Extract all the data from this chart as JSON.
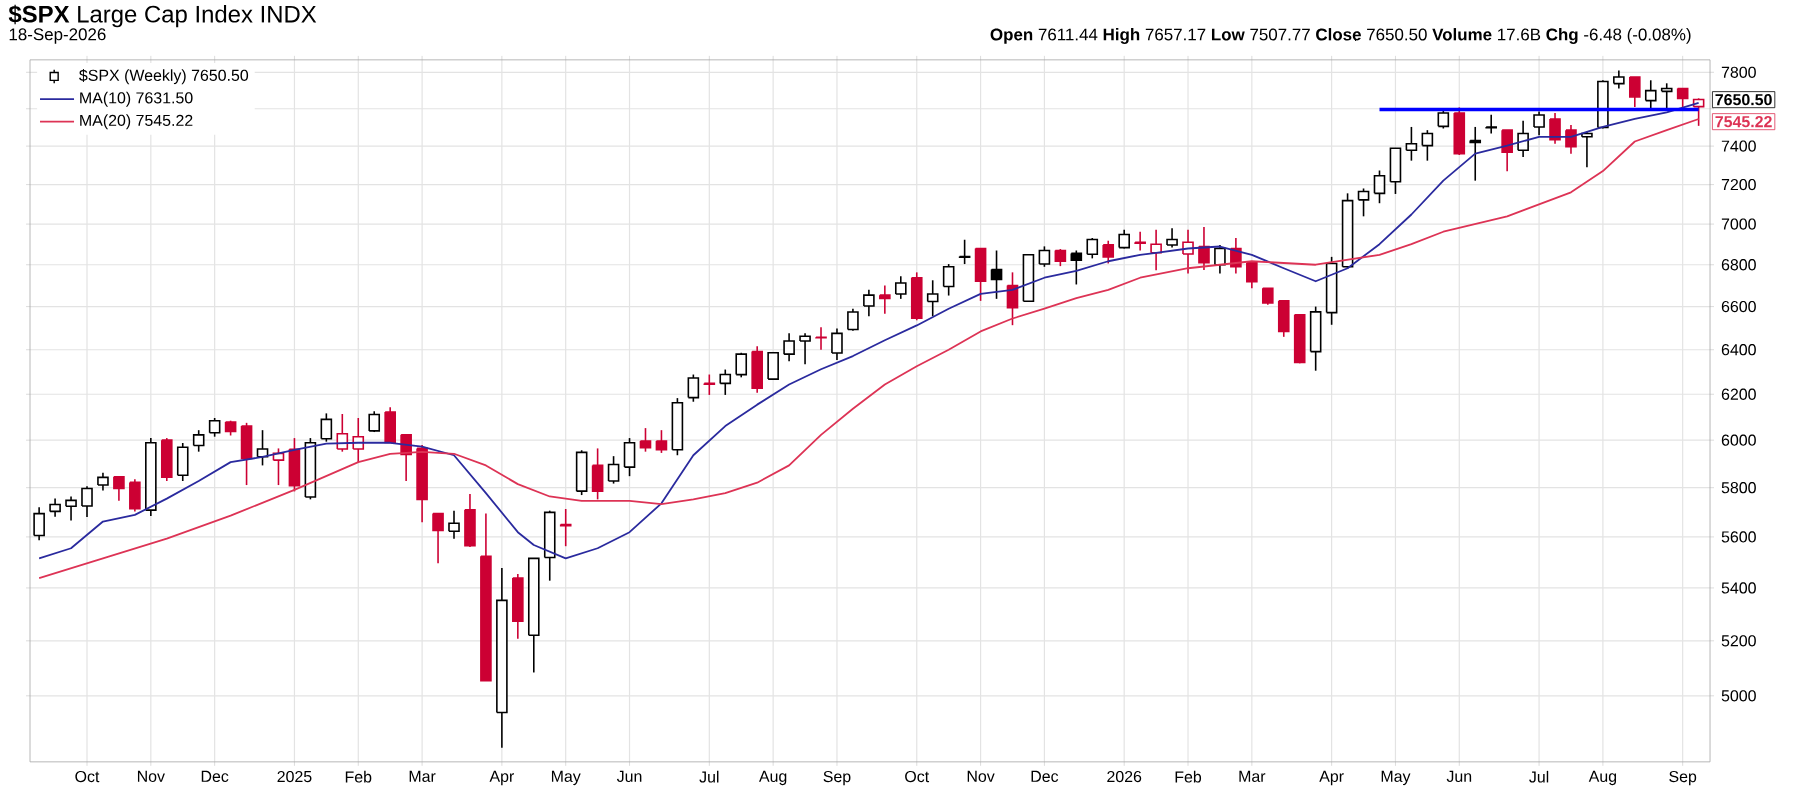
{
  "chart_data": {
    "type": "candlestick",
    "title": "**$SPX** Large Cap Index INDX",
    "subtitle": "18-Sep-2026",
    "annotations": [
      "**Open** 7611.44 **High** 7657.17 **Low** 7507.77 **Close** 7650.50 **Volume** 17.6B **Chg** -6.48 (-0.08%)",
      {
        "text": "7650.50",
        "x": "2026-09-18",
        "y": 7650.5
      },
      {
        "text": "7545.22",
        "x": "2026-09-18",
        "y": 7545.22
      }
    ],
    "log": "y",
    "grid": true,
    "legend": "top left",
    "xlim": [
      "2024-09-16",
      "2026-09-23"
    ],
    "ylim": [
      4770,
      7870
    ],
    "yticks": [
      5000,
      5200,
      5400,
      5600,
      5800,
      6000,
      6200,
      6400,
      6600,
      6800,
      7000,
      7200,
      7400,
      {
        "value": 7600,
        "label": null
      },
      7800
    ],
    "xticks": [
      {
        "value": "2024-10-11",
        "label": "Oct"
      },
      {
        "value": "2024-11-08",
        "label": "Nov"
      },
      {
        "value": "2024-12-06",
        "label": "Dec"
      },
      {
        "value": "2025-01-10",
        "label": "2025"
      },
      {
        "value": "2025-02-07",
        "label": "Feb"
      },
      {
        "value": "2025-03-07",
        "label": "Mar"
      },
      {
        "value": "2025-04-11",
        "label": "Apr"
      },
      {
        "value": "2025-05-09",
        "label": "May"
      },
      {
        "value": "2025-06-06",
        "label": "Jun"
      },
      {
        "value": "2025-07-11",
        "label": "Jul"
      },
      {
        "value": "2025-08-08",
        "label": "Aug"
      },
      {
        "value": "2025-09-05",
        "label": "Sep"
      },
      {
        "value": "2025-10-10",
        "label": "Oct"
      },
      {
        "value": "2025-11-07",
        "label": "Nov"
      },
      {
        "value": "2025-12-05",
        "label": "Dec"
      },
      {
        "value": "2026-01-09",
        "label": "2026"
      },
      {
        "value": "2026-02-06",
        "label": "Feb"
      },
      {
        "value": "2026-03-06",
        "label": "Mar"
      },
      {
        "value": "2026-04-10",
        "label": "Apr"
      },
      {
        "value": "2026-05-08",
        "label": "May"
      },
      {
        "value": "2026-06-05",
        "label": "Jun"
      },
      {
        "value": "2026-07-10",
        "label": "Jul"
      },
      {
        "value": "2026-08-07",
        "label": "Aug"
      },
      {
        "value": "2026-09-11",
        "label": "Sep"
      }
    ],
    "series": [
      {
        "name": "$SPX (Weekly) 7650.50",
        "x": [
          "2024-09-20",
          "2024-09-27",
          "2024-10-04",
          "2024-10-11",
          "2024-10-18",
          "2024-10-25",
          "2024-11-01",
          "2024-11-08",
          "2024-11-15",
          "2024-11-22",
          "2024-11-29",
          "2024-12-06",
          "2024-12-13",
          "2024-12-20",
          "2024-12-27",
          "2025-01-03",
          "2025-01-10",
          "2025-01-17",
          "2025-01-24",
          "2025-01-31",
          "2025-02-07",
          "2025-02-14",
          "2025-02-21",
          "2025-02-28",
          "2025-03-07",
          "2025-03-14",
          "2025-03-21",
          "2025-03-28",
          "2025-04-04",
          "2025-04-11",
          "2025-04-18",
          "2025-04-25",
          "2025-05-02",
          "2025-05-09",
          "2025-05-16",
          "2025-05-23",
          "2025-05-30",
          "2025-06-06",
          "2025-06-13",
          "2025-06-20",
          "2025-06-27",
          "2025-07-04",
          "2025-07-11",
          "2025-07-18",
          "2025-07-25",
          "2025-08-01",
          "2025-08-08",
          "2025-08-15",
          "2025-08-22",
          "2025-08-29",
          "2025-09-05",
          "2025-09-12",
          "2025-09-19",
          "2025-09-26",
          "2025-10-03",
          "2025-10-10",
          "2025-10-17",
          "2025-10-24",
          "2025-10-31",
          "2025-11-07",
          "2025-11-14",
          "2025-11-21",
          "2025-11-28",
          "2025-12-05",
          "2025-12-12",
          "2025-12-19",
          "2025-12-26",
          "2026-01-02",
          "2026-01-09",
          "2026-01-16",
          "2026-01-23",
          "2026-01-30",
          "2026-02-06",
          "2026-02-13",
          "2026-02-20",
          "2026-02-27",
          "2026-03-06",
          "2026-03-13",
          "2026-03-20",
          "2026-03-27",
          "2026-04-03",
          "2026-04-10",
          "2026-04-17",
          "2026-04-24",
          "2026-05-01",
          "2026-05-08",
          "2026-05-15",
          "2026-05-22",
          "2026-05-29",
          "2026-06-05",
          "2026-06-12",
          "2026-06-19",
          "2026-06-26",
          "2026-07-03",
          "2026-07-10",
          "2026-07-17",
          "2026-07-24",
          "2026-07-31",
          "2026-08-07",
          "2026-08-14",
          "2026-08-21",
          "2026-08-28",
          "2026-09-04",
          "2026-09-11",
          "2026-09-18"
        ],
        "ohlc": [
          [
            5606,
            5720,
            5587,
            5694
          ],
          [
            5703,
            5756,
            5681,
            5731
          ],
          [
            5724,
            5764,
            5666,
            5748
          ],
          [
            5725,
            5806,
            5680,
            5797
          ],
          [
            5811,
            5862,
            5789,
            5843
          ],
          [
            5846,
            5846,
            5746,
            5797
          ],
          [
            5822,
            5835,
            5703,
            5714
          ],
          [
            5708,
            6009,
            5684,
            5989
          ],
          [
            6000,
            6009,
            5828,
            5844
          ],
          [
            5852,
            5988,
            5828,
            5970
          ],
          [
            5977,
            6043,
            5951,
            6023
          ],
          [
            6032,
            6096,
            6015,
            6084
          ],
          [
            6078,
            6084,
            6020,
            6038
          ],
          [
            6061,
            6075,
            5811,
            5922
          ],
          [
            5930,
            6043,
            5893,
            5963
          ],
          [
            5915,
            5965,
            5811,
            5944
          ],
          [
            5961,
            6009,
            5785,
            5809
          ],
          [
            5762,
            6009,
            5752,
            5989
          ],
          [
            6006,
            6116,
            5994,
            6090
          ],
          [
            5963,
            6113,
            5951,
            6028
          ],
          [
            5963,
            6096,
            5907,
            6015
          ],
          [
            6040,
            6125,
            6035,
            6111
          ],
          [
            6122,
            6143,
            5991,
            5991
          ],
          [
            6023,
            6023,
            5828,
            5939
          ],
          [
            5965,
            5980,
            5659,
            5752
          ],
          [
            5694,
            5694,
            5496,
            5626
          ],
          [
            5623,
            5706,
            5593,
            5655
          ],
          [
            5710,
            5774,
            5560,
            5565
          ],
          [
            5523,
            5694,
            5054,
            5054
          ],
          [
            4941,
            5477,
            4818,
            5352
          ],
          [
            5438,
            5454,
            5208,
            5273
          ],
          [
            5221,
            5515,
            5084,
            5515
          ],
          [
            5518,
            5706,
            5428,
            5699
          ],
          [
            5650,
            5713,
            5563,
            5645
          ],
          [
            5786,
            5957,
            5770,
            5948
          ],
          [
            5893,
            5965,
            5752,
            5786
          ],
          [
            5828,
            5932,
            5817,
            5897
          ],
          [
            5886,
            6009,
            5848,
            5989
          ],
          [
            5997,
            6052,
            5951,
            5968
          ],
          [
            5997,
            6043,
            5946,
            5959
          ],
          [
            5959,
            6183,
            5936,
            6162
          ],
          [
            6185,
            6288,
            6167,
            6272
          ],
          [
            6248,
            6288,
            6197,
            6245
          ],
          [
            6248,
            6310,
            6197,
            6288
          ],
          [
            6287,
            6386,
            6275,
            6380
          ],
          [
            6391,
            6416,
            6206,
            6226
          ],
          [
            6267,
            6386,
            6267,
            6386
          ],
          [
            6380,
            6475,
            6348,
            6440
          ],
          [
            6440,
            6475,
            6334,
            6462
          ],
          [
            6457,
            6503,
            6400,
            6455
          ],
          [
            6385,
            6497,
            6353,
            6475
          ],
          [
            6493,
            6590,
            6487,
            6574
          ],
          [
            6603,
            6679,
            6555,
            6654
          ],
          [
            6654,
            6700,
            6566,
            6638
          ],
          [
            6660,
            6744,
            6636,
            6712
          ],
          [
            6737,
            6763,
            6536,
            6545
          ],
          [
            6624,
            6725,
            6555,
            6660
          ],
          [
            6695,
            6803,
            6652,
            6790
          ],
          [
            6840,
            6922,
            6803,
            6836
          ],
          [
            6879,
            6879,
            6627,
            6721
          ],
          [
            6777,
            6869,
            6636,
            6729
          ],
          [
            6700,
            6763,
            6513,
            6595
          ],
          [
            6625,
            6848,
            6625,
            6848
          ],
          [
            6803,
            6890,
            6790,
            6869
          ],
          [
            6869,
            6876,
            6793,
            6817
          ],
          [
            6855,
            6869,
            6705,
            6822
          ],
          [
            6851,
            6931,
            6831,
            6924
          ],
          [
            6897,
            6917,
            6806,
            6838
          ],
          [
            6883,
            6972,
            6879,
            6948
          ],
          [
            6910,
            6962,
            6869,
            6905
          ],
          [
            6858,
            6972,
            6773,
            6900
          ],
          [
            6896,
            6979,
            6883,
            6924
          ],
          [
            6852,
            6972,
            6757,
            6910
          ],
          [
            6889,
            6986,
            6774,
            6810
          ],
          [
            6800,
            6896,
            6757,
            6879
          ],
          [
            6879,
            6931,
            6757,
            6790
          ],
          [
            6810,
            6810,
            6686,
            6718
          ],
          [
            6686,
            6686,
            6608,
            6617
          ],
          [
            6627,
            6627,
            6459,
            6484
          ],
          [
            6562,
            6562,
            6338,
            6342
          ],
          [
            6391,
            6600,
            6305,
            6575
          ],
          [
            6572,
            6838,
            6515,
            6806
          ],
          [
            6790,
            7155,
            6781,
            7118
          ],
          [
            7122,
            7180,
            7039,
            7165
          ],
          [
            7155,
            7273,
            7105,
            7245
          ],
          [
            7214,
            7389,
            7152,
            7389
          ],
          [
            7379,
            7502,
            7324,
            7413
          ],
          [
            7403,
            7485,
            7324,
            7467
          ],
          [
            7505,
            7600,
            7494,
            7578
          ],
          [
            7578,
            7607,
            7354,
            7360
          ],
          [
            7430,
            7502,
            7220,
            7420
          ],
          [
            7502,
            7568,
            7467,
            7498
          ],
          [
            7485,
            7485,
            7269,
            7367
          ],
          [
            7379,
            7535,
            7343,
            7467
          ],
          [
            7502,
            7585,
            7458,
            7567
          ],
          [
            7545,
            7578,
            7413,
            7435
          ],
          [
            7485,
            7512,
            7360,
            7397
          ],
          [
            7450,
            7478,
            7290,
            7467
          ],
          [
            7500,
            7757,
            7494,
            7750
          ],
          [
            7738,
            7810,
            7711,
            7775
          ],
          [
            7775,
            7775,
            7610,
            7665
          ],
          [
            7645,
            7756,
            7600,
            7700
          ],
          [
            7696,
            7740,
            7600,
            7711
          ],
          [
            7711,
            7711,
            7590,
            7657
          ],
          [
            7611.44,
            7657.17,
            7507.77,
            7650.5
          ]
        ],
        "colors": [
          "#000000",
          "#000000",
          "#000000",
          "#000000",
          "#000000",
          "#cc0033",
          "#cc0033",
          "#000000",
          "#cc0033",
          "#000000",
          "#000000",
          "#000000",
          "#cc0033",
          "#cc0033",
          "#000000",
          "#cc0033",
          "#cc0033",
          "#000000",
          "#000000",
          "#cc0033",
          "#cc0033",
          "#000000",
          "#cc0033",
          "#cc0033",
          "#cc0033",
          "#cc0033",
          "#000000",
          "#cc0033",
          "#cc0033",
          "#000000",
          "#cc0033",
          "#000000",
          "#000000",
          "#cc0033",
          "#000000",
          "#cc0033",
          "#000000",
          "#000000",
          "#cc0033",
          "#cc0033",
          "#000000",
          "#000000",
          "#cc0033",
          "#000000",
          "#000000",
          "#cc0033",
          "#000000",
          "#000000",
          "#000000",
          "#cc0033",
          "#000000",
          "#000000",
          "#000000",
          "#cc0033",
          "#000000",
          "#cc0033",
          "#000000",
          "#000000",
          "#000000",
          "#cc0033",
          "#000000",
          "#cc0033",
          "#000000",
          "#000000",
          "#cc0033",
          "#000000",
          "#000000",
          "#cc0033",
          "#000000",
          "#cc0033",
          "#cc0033",
          "#000000",
          "#cc0033",
          "#cc0033",
          "#000000",
          "#cc0033",
          "#cc0033",
          "#cc0033",
          "#cc0033",
          "#cc0033",
          "#000000",
          "#000000",
          "#000000",
          "#000000",
          "#000000",
          "#000000",
          "#000000",
          "#000000",
          "#000000",
          "#cc0033",
          "#000000",
          "#000000",
          "#cc0033",
          "#000000",
          "#000000",
          "#cc0033",
          "#cc0033",
          "#000000",
          "#000000",
          "#000000",
          "#cc0033",
          "#000000",
          "#000000",
          "#cc0033",
          "#cc0033"
        ]
      },
      {
        "type": "line",
        "name": "MA(10) 7631.50",
        "color": "#2a2a9e",
        "x": [
          "2024-09-20",
          "2024-10-04",
          "2024-10-18",
          "2024-11-01",
          "2024-11-15",
          "2024-11-29",
          "2024-12-13",
          "2024-12-27",
          "2025-01-10",
          "2025-01-24",
          "2025-02-07",
          "2025-02-21",
          "2025-03-07",
          "2025-03-21",
          "2025-04-04",
          "2025-04-18",
          "2025-04-25",
          "2025-05-09",
          "2025-05-23",
          "2025-06-06",
          "2025-06-20",
          "2025-07-04",
          "2025-07-18",
          "2025-08-01",
          "2025-08-15",
          "2025-08-29",
          "2025-09-12",
          "2025-09-26",
          "2025-10-10",
          "2025-10-24",
          "2025-11-07",
          "2025-11-21",
          "2025-12-05",
          "2025-12-19",
          "2026-01-02",
          "2026-01-16",
          "2026-01-23",
          "2026-02-06",
          "2026-02-20",
          "2026-03-06",
          "2026-03-20",
          "2026-04-03",
          "2026-04-17",
          "2026-05-01",
          "2026-05-15",
          "2026-05-29",
          "2026-06-12",
          "2026-06-26",
          "2026-07-10",
          "2026-07-24",
          "2026-08-07",
          "2026-08-21",
          "2026-09-04",
          "2026-09-18"
        ],
        "values": [
          5515,
          5555,
          5662,
          5689,
          5755,
          5828,
          5907,
          5929,
          5959,
          5985,
          5989,
          5989,
          5972,
          5936,
          5778,
          5619,
          5568,
          5515,
          5555,
          5619,
          5736,
          5936,
          6061,
          6154,
          6243,
          6311,
          6371,
          6443,
          6512,
          6590,
          6660,
          6679,
          6737,
          6770,
          6817,
          6848,
          6858,
          6879,
          6889,
          6848,
          6783,
          6720,
          6783,
          6900,
          7048,
          7220,
          7360,
          7403,
          7450,
          7450,
          7502,
          7545,
          7580,
          7631.5
        ]
      },
      {
        "type": "line",
        "name": "MA(20) 7545.22",
        "color": "#dd3355",
        "x": [
          "2024-09-20",
          "2024-10-18",
          "2024-11-15",
          "2024-12-13",
          "2025-01-10",
          "2025-02-07",
          "2025-02-21",
          "2025-03-07",
          "2025-03-21",
          "2025-04-04",
          "2025-04-18",
          "2025-05-02",
          "2025-05-16",
          "2025-06-06",
          "2025-06-20",
          "2025-07-04",
          "2025-07-18",
          "2025-08-01",
          "2025-08-15",
          "2025-08-29",
          "2025-09-12",
          "2025-09-26",
          "2025-10-10",
          "2025-10-24",
          "2025-11-07",
          "2025-11-21",
          "2025-12-05",
          "2025-12-19",
          "2026-01-02",
          "2026-01-16",
          "2026-02-06",
          "2026-03-06",
          "2026-04-03",
          "2026-05-01",
          "2026-05-15",
          "2026-05-29",
          "2026-06-26",
          "2026-07-24",
          "2026-08-07",
          "2026-08-21",
          "2026-09-04",
          "2026-09-18"
        ],
        "values": [
          5438,
          5515,
          5593,
          5686,
          5791,
          5907,
          5942,
          5950,
          5942,
          5893,
          5815,
          5764,
          5746,
          5746,
          5733,
          5752,
          5778,
          5821,
          5893,
          6023,
          6136,
          6243,
          6325,
          6400,
          6484,
          6544,
          6590,
          6640,
          6679,
          6737,
          6783,
          6817,
          6800,
          6848,
          6900,
          6962,
          7039,
          7160,
          7270,
          7425,
          7485,
          7545.22
        ]
      },
      {
        "type": "line",
        "color": "#0000ff",
        "x": [
          "2026-05-01",
          "2026-09-18"
        ],
        "values": [
          7596,
          7596
        ]
      }
    ]
  }
}
